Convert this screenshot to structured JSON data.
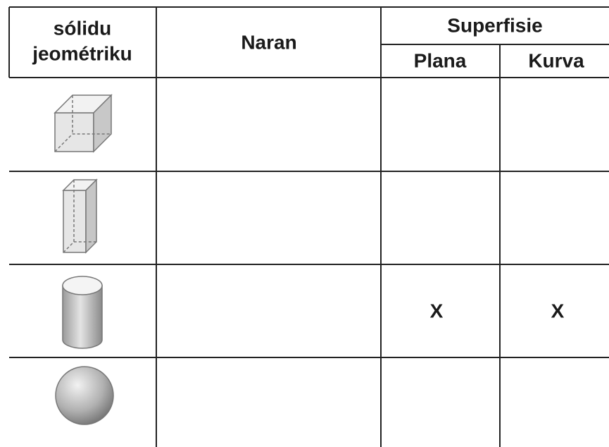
{
  "table": {
    "header": {
      "solid": [
        "sólidu",
        "jeométriku"
      ],
      "name": "Naran",
      "surface": "Superfisie",
      "plane": "Plana",
      "curved": "Kurva"
    },
    "cylinder_row": {
      "plane": "X",
      "curved": "X"
    }
  }
}
